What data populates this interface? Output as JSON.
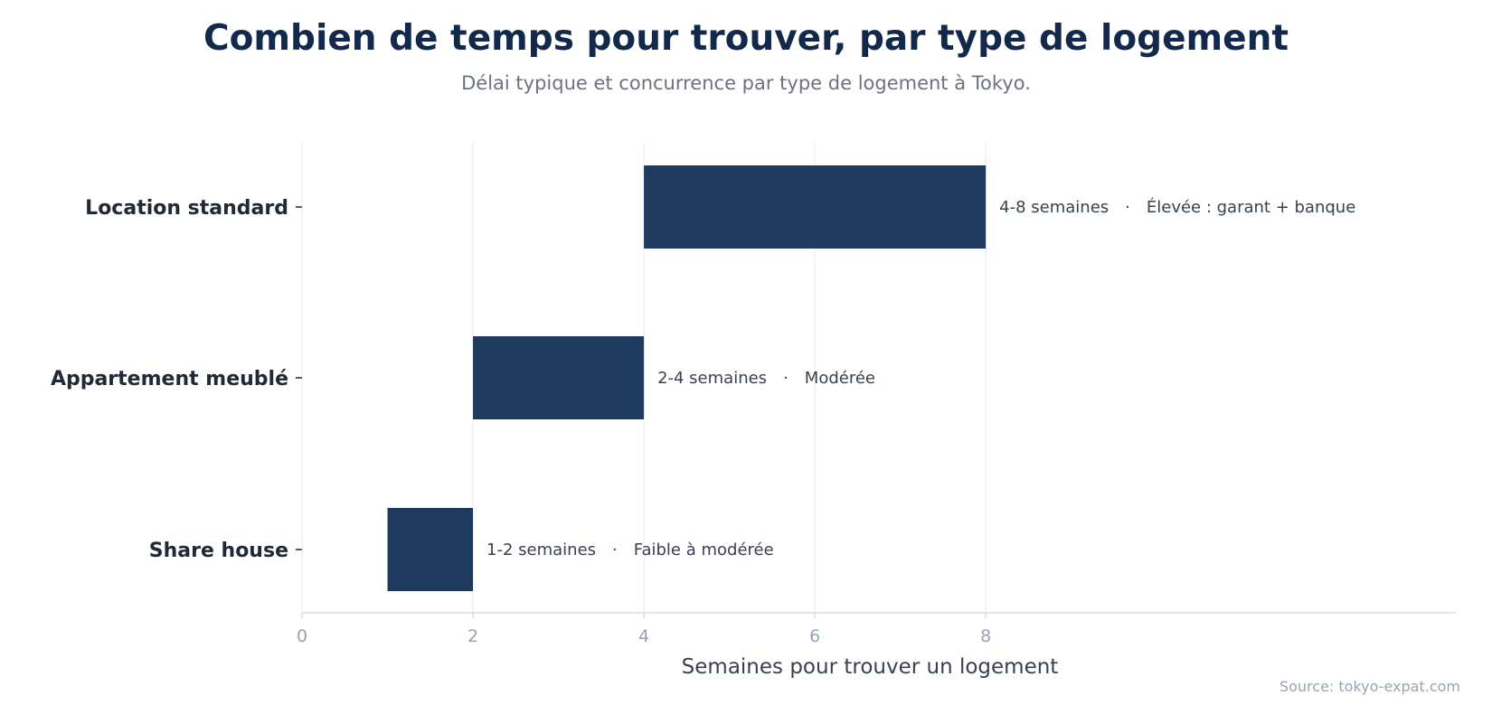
{
  "chart_data": {
    "type": "bar",
    "orientation": "horizontal",
    "title": "Combien de temps pour trouver, par type de logement",
    "subtitle": "Délai typique et concurrence par type de logement à Tokyo.",
    "xlabel": "Semaines pour trouver un logement",
    "ylabel": "",
    "source": "Source: tokyo-expat.com",
    "xlim": [
      0,
      13.5
    ],
    "xticks": [
      0,
      2,
      4,
      6,
      8
    ],
    "grid": true,
    "bar_color": "#1f3a5f",
    "categories": [
      "Location standard",
      "Appartement meublé",
      "Share house"
    ],
    "ranges": [
      {
        "start": 4,
        "end": 8
      },
      {
        "start": 2,
        "end": 4
      },
      {
        "start": 1,
        "end": 2
      }
    ],
    "duration_labels": [
      "4-8 semaines",
      "2-4 semaines",
      "1-2 semaines"
    ],
    "competition_labels": [
      "Élevée : garant + banque",
      "Modérée",
      "Faible à modérée"
    ],
    "separator": "·"
  }
}
